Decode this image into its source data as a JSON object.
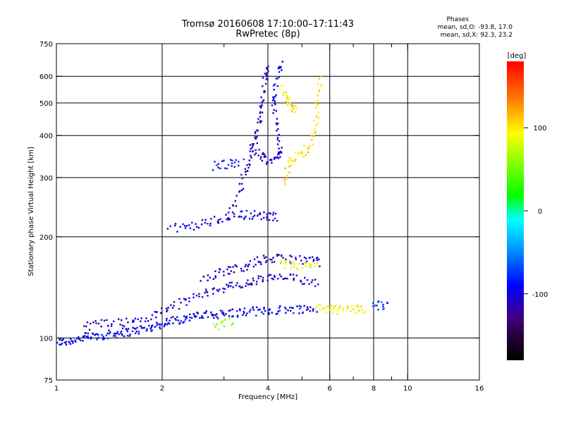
{
  "chart_data": {
    "type": "scatter",
    "title_line1": "Tromsø 20160608 17:10:00–17:11:43",
    "title_line2": "RwPretec (8p)",
    "xlabel": "Frequency [MHz]",
    "ylabel": "Stationary phase Virtual Height [km]",
    "x_scale": "log2",
    "y_scale": "log",
    "xlim": [
      1,
      16
    ],
    "ylim": [
      75,
      750
    ],
    "x_ticks": [
      1,
      2,
      4,
      6,
      8,
      10,
      16
    ],
    "x_grid": [
      2,
      4,
      6,
      8,
      10
    ],
    "x_minor": [
      3,
      5,
      7,
      9
    ],
    "y_ticks": [
      75,
      100,
      200,
      300,
      400,
      500,
      600,
      750
    ],
    "y_grid": [
      100,
      200,
      300,
      400,
      500,
      600
    ],
    "legend": {
      "heading": "Phases",
      "line_o": "mean, sd,O:  -93.8,  17.0",
      "line_x": "mean, sd,X:   92.3,  23.2"
    },
    "colorbar": {
      "label": "[deg]",
      "range": [
        -180,
        180
      ],
      "ticks": [
        100,
        0,
        -100
      ]
    },
    "series": [
      {
        "traces": [
          {
            "points": [
              [
                1.0,
                98
              ],
              [
                1.04,
                97
              ],
              [
                1.08,
                98
              ],
              [
                1.13,
                99
              ],
              [
                1.18,
                100
              ],
              [
                1.23,
                101
              ],
              [
                1.28,
                101
              ],
              [
                1.34,
                102
              ],
              [
                1.4,
                102
              ],
              [
                1.46,
                103
              ],
              [
                1.52,
                104
              ],
              [
                1.58,
                104
              ],
              [
                1.66,
                105
              ],
              [
                1.74,
                106
              ],
              [
                1.82,
                107
              ],
              [
                1.9,
                108
              ],
              [
                1.99,
                110
              ],
              [
                2.08,
                112
              ],
              [
                2.18,
                113
              ],
              [
                2.28,
                114
              ],
              [
                2.38,
                115
              ],
              [
                2.5,
                116
              ],
              [
                2.62,
                117
              ],
              [
                2.75,
                117
              ],
              [
                2.9,
                118
              ],
              [
                3.05,
                118
              ],
              [
                3.2,
                119
              ],
              [
                3.4,
                119
              ],
              [
                3.6,
                120
              ],
              [
                3.8,
                120
              ],
              [
                4.0,
                121
              ],
              [
                4.3,
                121
              ],
              [
                4.6,
                122
              ],
              [
                4.9,
                122
              ],
              [
                5.2,
                122
              ],
              [
                5.5,
                122
              ]
            ],
            "phase": -95
          },
          {
            "points": [
              [
                1.2,
                108
              ],
              [
                1.3,
                110
              ],
              [
                1.42,
                112
              ],
              [
                1.55,
                111
              ],
              [
                1.7,
                113
              ],
              [
                1.85,
                115
              ],
              [
                2.0,
                120
              ],
              [
                2.15,
                124
              ],
              [
                2.3,
                128
              ],
              [
                2.5,
                133
              ],
              [
                2.7,
                137
              ],
              [
                2.9,
                140
              ],
              [
                3.1,
                142
              ],
              [
                3.3,
                143
              ],
              [
                3.5,
                145
              ],
              [
                3.7,
                148
              ],
              [
                3.9,
                150
              ],
              [
                4.2,
                151
              ],
              [
                4.5,
                151
              ],
              [
                4.8,
                150
              ],
              [
                5.2,
                148
              ],
              [
                5.6,
                146
              ]
            ],
            "phase": -105
          },
          {
            "points": [
              [
                2.6,
                150
              ],
              [
                2.8,
                155
              ],
              [
                3.0,
                158
              ],
              [
                3.2,
                160
              ],
              [
                3.4,
                163
              ],
              [
                3.6,
                166
              ],
              [
                3.8,
                170
              ],
              [
                4.0,
                172
              ],
              [
                4.3,
                172
              ],
              [
                4.6,
                172
              ],
              [
                5.0,
                171
              ],
              [
                5.4,
                170
              ],
              [
                5.7,
                168
              ]
            ],
            "phase": -108
          },
          {
            "points": [
              [
                2.1,
                212
              ],
              [
                2.3,
                213
              ],
              [
                2.5,
                216
              ],
              [
                2.7,
                221
              ],
              [
                2.9,
                225
              ],
              [
                3.1,
                230
              ],
              [
                3.3,
                232
              ],
              [
                3.5,
                233
              ],
              [
                3.7,
                232
              ],
              [
                3.9,
                230
              ],
              [
                4.1,
                229
              ],
              [
                4.3,
                230
              ]
            ],
            "phase": -100
          },
          {
            "points": [
              [
                3.1,
                240
              ],
              [
                3.3,
                265
              ],
              [
                3.4,
                300
              ],
              [
                3.5,
                330
              ],
              [
                3.6,
                360
              ],
              [
                3.7,
                390
              ],
              [
                3.75,
                420
              ],
              [
                3.8,
                460
              ],
              [
                3.85,
                500
              ],
              [
                3.9,
                560
              ],
              [
                3.95,
                620
              ],
              [
                4.0,
                650
              ]
            ],
            "phase": -110
          },
          {
            "points": [
              [
                3.6,
                360
              ],
              [
                3.8,
                350
              ],
              [
                3.95,
                340
              ],
              [
                4.1,
                335
              ],
              [
                4.25,
                345
              ],
              [
                4.35,
                360
              ],
              [
                4.3,
                400
              ],
              [
                4.2,
                450
              ],
              [
                4.15,
                500
              ],
              [
                4.2,
                560
              ],
              [
                4.3,
                620
              ],
              [
                4.4,
                650
              ]
            ],
            "phase": -102
          },
          {
            "points": [
              [
                2.8,
                325
              ],
              [
                3.0,
                328
              ],
              [
                3.2,
                330
              ],
              [
                3.4,
                332
              ]
            ],
            "phase": -92
          },
          {
            "points": [
              [
                4.45,
                290
              ],
              [
                4.55,
                320
              ],
              [
                4.7,
                340
              ],
              [
                4.9,
                350
              ],
              [
                5.1,
                360
              ],
              [
                5.3,
                380
              ],
              [
                5.45,
                420
              ],
              [
                5.55,
                470
              ],
              [
                5.6,
                530
              ],
              [
                5.65,
                600
              ]
            ],
            "phase": 105
          },
          {
            "points": [
              [
                4.4,
                560
              ],
              [
                4.5,
                520
              ],
              [
                4.6,
                500
              ],
              [
                4.7,
                480
              ],
              [
                4.8,
                470
              ]
            ],
            "phase": 100
          },
          {
            "points": [
              [
                4.3,
                165
              ],
              [
                4.6,
                165
              ],
              [
                4.9,
                164
              ],
              [
                5.2,
                164
              ],
              [
                5.5,
                163
              ]
            ],
            "phase": 98
          },
          {
            "points": [
              [
                5.5,
                122
              ],
              [
                5.8,
                122
              ],
              [
                6.1,
                121
              ],
              [
                6.4,
                121
              ],
              [
                6.8,
                122
              ],
              [
                7.2,
                122
              ],
              [
                7.6,
                122
              ]
            ],
            "phase": 95
          },
          {
            "points": [
              [
                8.0,
                125
              ],
              [
                8.4,
                125
              ],
              [
                8.8,
                124
              ]
            ],
            "phase": -70
          },
          {
            "points": [
              [
                2.8,
                107
              ],
              [
                3.0,
                110
              ],
              [
                3.2,
                113
              ]
            ],
            "phase": 60
          }
        ]
      }
    ]
  }
}
